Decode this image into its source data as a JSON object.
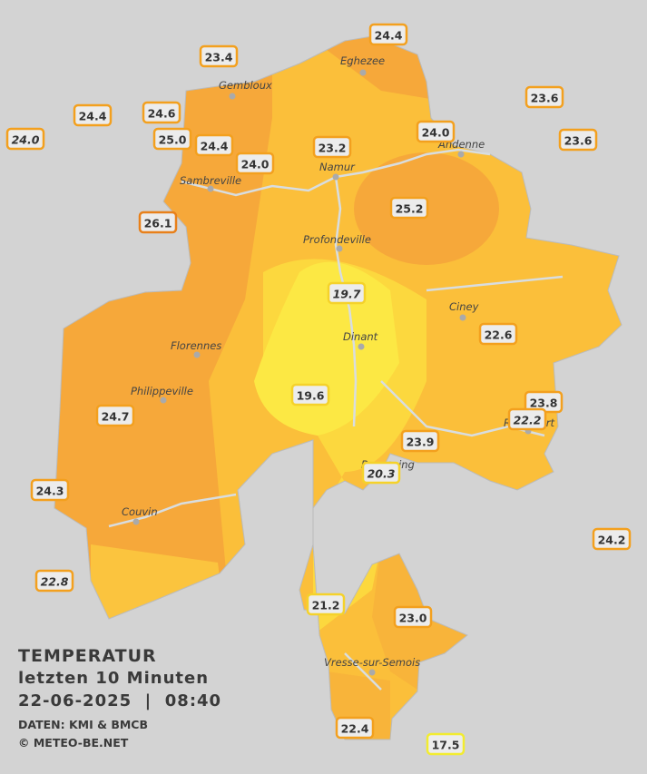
{
  "title": {
    "heading": "TEMPERATUR",
    "period": "letzten 10 Minuten",
    "datetime": "22-06-2025  |  08:40",
    "source": "DATEN: KMI & BMCB",
    "credit": "© METEO-BE.NET"
  },
  "cities": [
    "Eghezee",
    "Gembloux",
    "Andenne",
    "Namur",
    "Sambreville",
    "Profondeville",
    "Ciney",
    "Dinant",
    "Florennes",
    "Philippeville",
    "Rochefort",
    "Beauraing",
    "Couvin",
    "Vresse-sur-Semois"
  ],
  "stations": [
    "24.4",
    "23.4",
    "23.6",
    "24.4",
    "24.6",
    "24.0",
    "25.0",
    "24.4",
    "24.0",
    "23.6",
    "23.2",
    "24.0",
    "26.1",
    "25.2",
    "19.7",
    "22.6",
    "23.8",
    "19.6",
    "24.7",
    "22.2",
    "23.9",
    "20.3",
    "24.3",
    "24.2",
    "22.8",
    "21.2",
    "23.0",
    "22.4",
    "17.5"
  ]
}
